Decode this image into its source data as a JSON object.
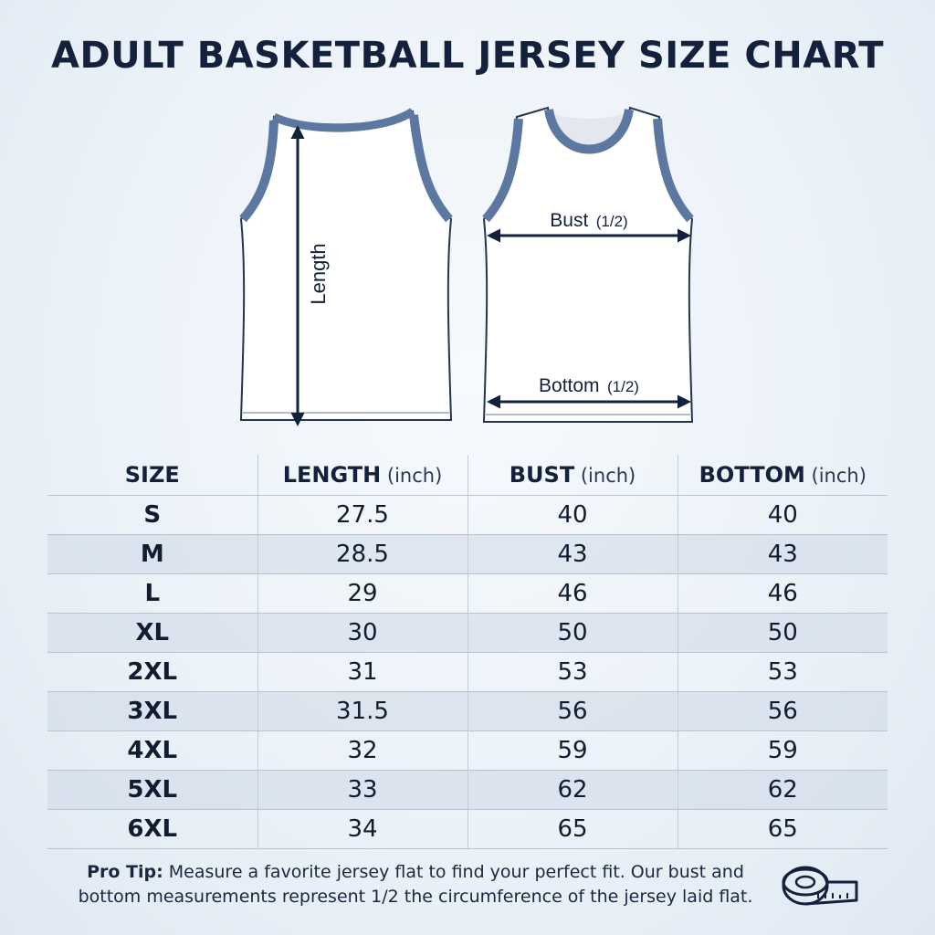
{
  "title": "ADULT BASKETBALL JERSEY SIZE CHART",
  "diagram": {
    "length_label": "Length",
    "bust_label": "Bust",
    "bust_fraction": "(1/2)",
    "bottom_label": "Bottom",
    "bottom_fraction": "(1/2)"
  },
  "table": {
    "headers": [
      {
        "label": "SIZE",
        "unit": ""
      },
      {
        "label": "LENGTH",
        "unit": " (inch)"
      },
      {
        "label": "BUST",
        "unit": " (inch)"
      },
      {
        "label": "BOTTOM",
        "unit": " (inch)"
      }
    ],
    "rows": [
      [
        "S",
        "27.5",
        "40",
        "40"
      ],
      [
        "M",
        "28.5",
        "43",
        "43"
      ],
      [
        "L",
        "29",
        "46",
        "46"
      ],
      [
        "XL",
        "30",
        "50",
        "50"
      ],
      [
        "2XL",
        "31",
        "53",
        "53"
      ],
      [
        "3XL",
        "31.5",
        "56",
        "56"
      ],
      [
        "4XL",
        "32",
        "59",
        "59"
      ],
      [
        "5XL",
        "33",
        "62",
        "62"
      ],
      [
        "6XL",
        "34",
        "65",
        "65"
      ]
    ]
  },
  "tip": {
    "label": "Pro Tip:",
    "text": " Measure a favorite jersey flat to find your perfect fit. Our bust and bottom measurements represent 1/2 the circumference of the jersey laid flat."
  },
  "icons": {
    "tape": "measuring-tape-icon"
  },
  "colors": {
    "trim": "#5d78a0",
    "text": "#14213d",
    "row_alt": "#d7e0eb"
  }
}
